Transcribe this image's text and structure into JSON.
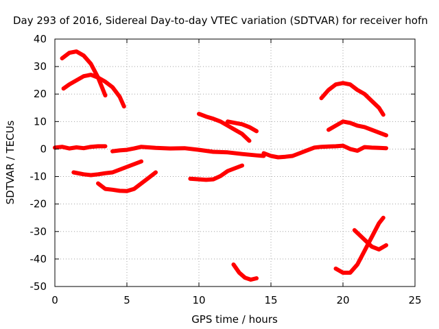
{
  "chart_data": {
    "type": "line",
    "title": "Day 293 of 2016, Sidereal Day-to-day VTEC variation (SDTVAR) for receiver hofn",
    "xlabel": "GPS time / hours",
    "ylabel": "SDTVAR / TECUs",
    "xlim": [
      0,
      25
    ],
    "ylim": [
      -50,
      40
    ],
    "xticks": [
      0,
      5,
      10,
      15,
      20,
      25
    ],
    "yticks": [
      40,
      30,
      20,
      10,
      0,
      -10,
      -20,
      -30,
      -40,
      -50
    ],
    "grid": true,
    "legend": "none",
    "color": "#ff0000",
    "series": [
      {
        "x": [
          0.0,
          0.5,
          1.0,
          1.5,
          2.0,
          2.5,
          3.0,
          3.5
        ],
        "y": [
          0.5,
          0.8,
          0.2,
          0.6,
          0.3,
          0.8,
          1.0,
          1.0
        ]
      },
      {
        "x": [
          4.0,
          4.5,
          5.0,
          5.5,
          6.0,
          7.0,
          8.0,
          9.0,
          10.0,
          11.0,
          12.0,
          13.0,
          14.0,
          14.5
        ],
        "y": [
          -0.8,
          -0.5,
          -0.3,
          0.2,
          0.8,
          0.4,
          0.2,
          0.3,
          -0.3,
          -1.0,
          -1.2,
          -1.8,
          -2.3,
          -2.5
        ]
      },
      {
        "x": [
          14.5,
          15.0,
          15.5,
          16.0,
          16.5,
          17.0,
          17.5,
          18.0,
          18.5,
          19.0,
          19.5,
          20.0,
          20.5,
          21.0,
          21.5,
          22.0,
          22.5,
          23.0
        ],
        "y": [
          -1.5,
          -2.5,
          -3.0,
          -2.8,
          -2.5,
          -1.5,
          -0.5,
          0.5,
          0.8,
          0.9,
          1.0,
          1.2,
          0.0,
          -0.6,
          0.7,
          0.5,
          0.4,
          0.3
        ]
      },
      {
        "x": [
          0.5,
          1.0,
          1.5,
          2.0,
          2.5,
          3.0,
          3.5
        ],
        "y": [
          33,
          35,
          35.5,
          34,
          31,
          26,
          19.5
        ]
      },
      {
        "x": [
          0.6,
          1.0,
          1.5,
          2.0,
          2.5,
          3.0,
          3.5,
          4.0,
          4.5,
          4.8
        ],
        "y": [
          22,
          23.5,
          25,
          26.5,
          27,
          26,
          24.5,
          22.5,
          19,
          15.5
        ]
      },
      {
        "x": [
          1.3,
          2.0,
          2.5,
          3.0,
          3.5,
          4.0,
          4.5,
          5.0,
          5.5,
          6.0
        ],
        "y": [
          -8.5,
          -9.2,
          -9.5,
          -9.2,
          -8.8,
          -8.5,
          -7.5,
          -6.5,
          -5.5,
          -4.5
        ]
      },
      {
        "x": [
          3.0,
          3.5,
          4.0,
          4.5,
          5.0,
          5.5,
          6.0,
          6.5,
          7.0
        ],
        "y": [
          -12.5,
          -14.5,
          -14.8,
          -15.2,
          -15.3,
          -14.5,
          -12.5,
          -10.5,
          -8.5
        ]
      },
      {
        "x": [
          9.4,
          10.0,
          10.5,
          11.0,
          11.5,
          12.0,
          12.5,
          13.0
        ],
        "y": [
          -10.8,
          -11.0,
          -11.2,
          -11.0,
          -9.8,
          -8.0,
          -7.0,
          -6.0
        ]
      },
      {
        "x": [
          10.0,
          10.5,
          11.0,
          11.5,
          12.0,
          12.5,
          13.0,
          13.5
        ],
        "y": [
          12.8,
          11.8,
          11.0,
          10.0,
          8.5,
          7.0,
          5.5,
          3.0
        ]
      },
      {
        "x": [
          12.0,
          12.5,
          13.0,
          13.5,
          14.0
        ],
        "y": [
          10.0,
          9.5,
          9.0,
          8.0,
          6.5
        ]
      },
      {
        "x": [
          12.4,
          12.8,
          13.2,
          13.6,
          14.0
        ],
        "y": [
          -42.0,
          -45.0,
          -46.8,
          -47.5,
          -47.0
        ]
      },
      {
        "x": [
          18.5,
          19.0,
          19.5,
          20.0,
          20.5,
          21.0,
          21.5,
          22.0,
          22.5,
          22.8
        ],
        "y": [
          18.5,
          21.5,
          23.5,
          24.0,
          23.5,
          21.5,
          20.0,
          17.5,
          15.0,
          12.5
        ]
      },
      {
        "x": [
          19.0,
          19.5,
          20.0,
          20.5,
          21.0,
          21.5,
          22.0,
          22.5,
          23.0
        ],
        "y": [
          7.0,
          8.5,
          10.0,
          9.5,
          8.5,
          8.0,
          7.0,
          6.0,
          5.0
        ]
      },
      {
        "x": [
          19.5,
          20.0,
          20.5,
          21.0,
          21.5,
          22.0,
          22.5,
          22.8
        ],
        "y": [
          -43.5,
          -45.0,
          -45.0,
          -42.0,
          -37.0,
          -32.0,
          -27.0,
          -25.0
        ]
      },
      {
        "x": [
          20.8,
          21.5,
          22.0,
          22.5,
          23.0
        ],
        "y": [
          -29.5,
          -33.0,
          -35.5,
          -36.5,
          -35.0
        ]
      }
    ]
  }
}
